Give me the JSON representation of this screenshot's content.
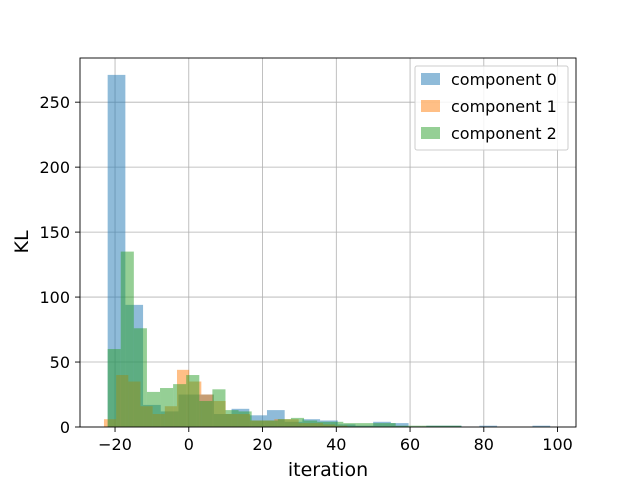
{
  "chart_data": {
    "type": "bar",
    "subtype": "histogram",
    "title": "",
    "xlabel": "iteration",
    "ylabel": "KL",
    "xlim": [
      -29.5,
      105
    ],
    "ylim": [
      0,
      284
    ],
    "xticks": [
      -20,
      0,
      20,
      40,
      60,
      80,
      100
    ],
    "yticks": [
      0,
      50,
      100,
      150,
      200,
      250
    ],
    "grid": true,
    "legend_position": "upper right",
    "series": [
      {
        "name": "component 0",
        "color": "#1f77b4",
        "alpha": 0.5,
        "bin_edges": [
          -22,
          -17.2,
          -12.4,
          -7.6,
          -2.8,
          2.0,
          6.8,
          11.6,
          16.4,
          21.2,
          26.0,
          30.8,
          35.6,
          40.4,
          45.2,
          50.0,
          54.8,
          59.6,
          64.4,
          69.2,
          74.0,
          78.8,
          83.6,
          88.4,
          93.2,
          98.0,
          102.8
        ],
        "counts": [
          271,
          94,
          17,
          12,
          25,
          25,
          10,
          14,
          9,
          13,
          4,
          6,
          5,
          2,
          1,
          4,
          3,
          0,
          1,
          1,
          0,
          1,
          0,
          0,
          1,
          0
        ]
      },
      {
        "name": "component 1",
        "color": "#ff7f0e",
        "alpha": 0.5,
        "bin_edges": [
          -23,
          -19.7,
          -16.4,
          -13.1,
          -9.8,
          -6.5,
          -3.2,
          0.1,
          3.4,
          6.7,
          10.0,
          13.3,
          16.6,
          19.9,
          23.2,
          26.5,
          29.8,
          33.1,
          36.4,
          39.7,
          43.0
        ],
        "counts": [
          6,
          40,
          35,
          16,
          10,
          16,
          44,
          35,
          25,
          20,
          10,
          10,
          5,
          5,
          6,
          6,
          3,
          3,
          2,
          1
        ]
      },
      {
        "name": "component 2",
        "color": "#2ca02c",
        "alpha": 0.5,
        "bin_edges": [
          -22,
          -18.45,
          -14.9,
          -11.35,
          -7.8,
          -4.25,
          -0.7,
          2.85,
          6.4,
          9.95,
          13.5,
          17.05,
          20.6,
          24.15,
          27.7,
          31.25,
          34.8,
          38.35,
          41.9,
          45.45,
          49.0,
          52.55,
          56.1,
          59.65,
          63.2,
          66.75,
          70.3,
          73.85
        ],
        "counts": [
          60,
          135,
          76,
          27,
          30,
          33,
          40,
          20,
          29,
          13,
          12,
          5,
          5,
          6,
          7,
          5,
          4,
          4,
          3,
          3,
          3,
          3,
          1,
          1,
          1,
          1,
          1
        ]
      }
    ]
  },
  "legend": {
    "items": [
      "component 0",
      "component 1",
      "component 2"
    ]
  }
}
